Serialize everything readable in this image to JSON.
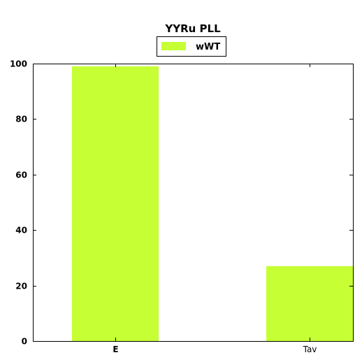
{
  "chart_data": {
    "type": "bar",
    "title": "YYRu PLL",
    "categories": [
      "E",
      "Tav"
    ],
    "series": [
      {
        "name": "wWT",
        "values": [
          99,
          27
        ],
        "color": "#c5ff34"
      }
    ],
    "xlabel": "",
    "ylabel": "",
    "ylim": [
      0,
      100
    ],
    "yticks": [
      0,
      20,
      40,
      60,
      80,
      100
    ],
    "ytick_labels": [
      "0",
      "20",
      "40",
      "60",
      "80",
      "100"
    ],
    "grid": false,
    "legend_position": "top-center"
  }
}
